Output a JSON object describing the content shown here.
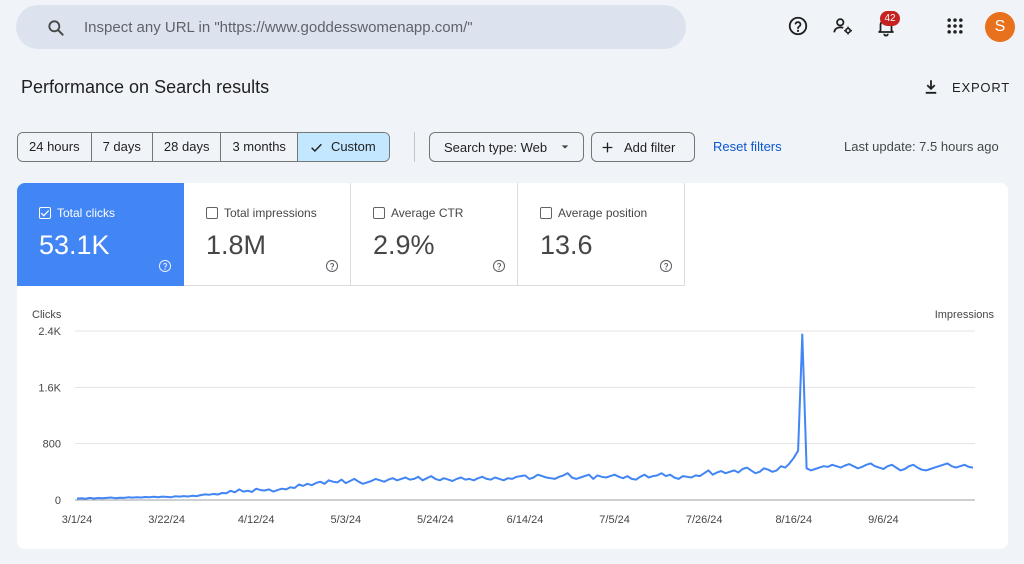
{
  "search": {
    "placeholder": "Inspect any URL in \"https://www.goddesswomenapp.com/\"",
    "value": ""
  },
  "header": {
    "icons": [
      "help-icon",
      "manage-users-icon",
      "notifications-icon",
      "apps-grid-icon"
    ],
    "notification_count": "42",
    "avatar_letter": "S",
    "avatar_color": "#e8711e"
  },
  "page": {
    "title": "Performance on Search results",
    "export_label": "EXPORT"
  },
  "filters": {
    "ranges": [
      "24 hours",
      "7 days",
      "28 days",
      "3 months",
      "Custom"
    ],
    "active_range": "Custom",
    "search_type": "Search type: Web",
    "add_filter": "Add filter",
    "reset": "Reset filters",
    "last_update": "Last update: 7.5 hours ago"
  },
  "metrics": [
    {
      "label": "Total clicks",
      "value": "53.1K",
      "checked": true,
      "color": "#4285f4"
    },
    {
      "label": "Total impressions",
      "value": "1.8M",
      "checked": false
    },
    {
      "label": "Average CTR",
      "value": "2.9%",
      "checked": false
    },
    {
      "label": "Average position",
      "value": "13.6",
      "checked": false
    }
  ],
  "chart_data": {
    "type": "line",
    "left_axis_title": "Clicks",
    "right_axis_title": "Impressions",
    "y_ticks": [
      0,
      800,
      1600,
      2400
    ],
    "y_tick_labels": [
      "0",
      "800",
      "1.6K",
      "2.4K"
    ],
    "ylim": [
      0,
      2400
    ],
    "x_tick_labels": [
      "3/1/24",
      "3/22/24",
      "4/12/24",
      "5/3/24",
      "5/24/24",
      "6/14/24",
      "7/5/24",
      "7/26/24",
      "8/16/24",
      "9/6/24"
    ],
    "x_tick_days": [
      0,
      21,
      42,
      63,
      84,
      105,
      126,
      147,
      168,
      189
    ],
    "grid": true,
    "series": [
      {
        "name": "Clicks",
        "color": "#4285f4",
        "values": [
          20,
          25,
          18,
          30,
          22,
          28,
          24,
          30,
          35,
          26,
          32,
          30,
          38,
          34,
          40,
          36,
          42,
          38,
          45,
          40,
          48,
          44,
          40,
          52,
          48,
          56,
          50,
          60,
          55,
          70,
          80,
          75,
          85,
          78,
          100,
          95,
          130,
          110,
          150,
          120,
          130,
          115,
          160,
          140,
          135,
          150,
          120,
          140,
          160,
          150,
          180,
          170,
          220,
          200,
          230,
          210,
          240,
          260,
          230,
          280,
          260,
          250,
          290,
          240,
          270,
          300,
          260,
          230,
          250,
          270,
          300,
          280,
          260,
          290,
          310,
          280,
          300,
          320,
          290,
          300,
          330,
          280,
          310,
          340,
          300,
          280,
          310,
          290,
          270,
          300,
          320,
          290,
          300,
          280,
          310,
          330,
          300,
          290,
          320,
          300,
          280,
          310,
          300,
          330,
          340,
          350,
          300,
          320,
          360,
          340,
          320,
          310,
          300,
          330,
          350,
          380,
          320,
          300,
          320,
          340,
          360,
          300,
          350,
          330,
          320,
          340,
          360,
          330,
          310,
          340,
          300,
          290,
          330,
          360,
          320,
          340,
          350,
          380,
          340,
          360,
          320,
          300,
          340,
          330,
          320,
          350,
          340,
          380,
          420,
          360,
          390,
          410,
          380,
          400,
          420,
          390,
          440,
          460,
          420,
          380,
          400,
          450,
          430,
          400,
          420,
          480,
          460,
          520,
          600,
          700,
          2350,
          450,
          420,
          440,
          460,
          480,
          470,
          500,
          480,
          460,
          490,
          510,
          480,
          450,
          470,
          500,
          520,
          480,
          460,
          440,
          480,
          500,
          460,
          420,
          440,
          480,
          500,
          460,
          430,
          420,
          440,
          460,
          480,
          500,
          520,
          480,
          460,
          480,
          500,
          470,
          460
        ]
      }
    ]
  }
}
